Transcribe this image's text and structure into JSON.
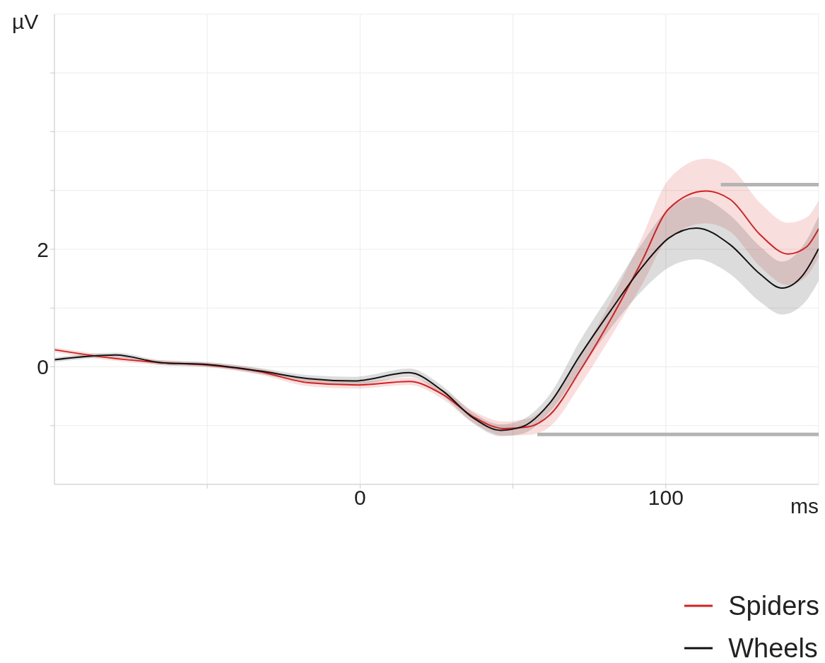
{
  "chart_data": {
    "type": "line",
    "xlabel": "ms",
    "ylabel": "µV",
    "xlim": [
      -100,
      150
    ],
    "ylim": [
      -2,
      6
    ],
    "xticks": [
      {
        "value": -50,
        "label": null
      },
      0,
      {
        "value": 50,
        "label": null
      },
      100
    ],
    "yticks": [
      {
        "value": -1,
        "label": null
      },
      0,
      {
        "value": 1,
        "label": null
      },
      2,
      {
        "value": 3,
        "label": null
      },
      {
        "value": 4,
        "label": null
      },
      {
        "value": 5,
        "label": null
      }
    ],
    "grid": true,
    "legend": "bottom right",
    "marker": "none",
    "line_style": "solid",
    "series": [
      {
        "name": "Spiders",
        "color": "#d42020",
        "x": [
          -100,
          -80,
          -65,
          -50,
          -33,
          -17,
          -1,
          16,
          27,
          37,
          47,
          55,
          62,
          72,
          82,
          92,
          101,
          113,
          121,
          131,
          140,
          146,
          150
        ],
        "values": [
          0.29,
          0.14,
          0.07,
          0.03,
          -0.08,
          -0.27,
          -0.31,
          -0.25,
          -0.47,
          -0.85,
          -1.05,
          -1.02,
          -0.82,
          -0.06,
          0.81,
          1.78,
          2.69,
          2.99,
          2.85,
          2.24,
          1.92,
          2.04,
          2.35
        ],
        "lower": [
          0.25,
          0.1,
          0.03,
          -0.01,
          -0.13,
          -0.33,
          -0.37,
          -0.31,
          -0.55,
          -0.95,
          -1.17,
          -1.16,
          -1.02,
          -0.31,
          0.51,
          1.38,
          2.19,
          2.44,
          2.3,
          1.7,
          1.39,
          1.54,
          1.87
        ],
        "upper": [
          0.33,
          0.18,
          0.11,
          0.07,
          -0.03,
          -0.21,
          -0.25,
          -0.19,
          -0.39,
          -0.75,
          -0.93,
          -0.88,
          -0.62,
          0.19,
          1.11,
          2.18,
          3.19,
          3.54,
          3.4,
          2.78,
          2.45,
          2.54,
          2.83
        ]
      },
      {
        "name": "Wheels",
        "color": "#111111",
        "x": [
          -100,
          -80,
          -65,
          -50,
          -33,
          -17,
          -2,
          16,
          27,
          37,
          46,
          53,
          62,
          72,
          82,
          92,
          101,
          110,
          121,
          131,
          138,
          145,
          150
        ],
        "values": [
          0.12,
          0.2,
          0.07,
          0.04,
          -0.07,
          -0.2,
          -0.24,
          -0.1,
          -0.41,
          -0.87,
          -1.08,
          -1.02,
          -0.62,
          0.2,
          0.96,
          1.68,
          2.19,
          2.36,
          2.08,
          1.57,
          1.34,
          1.57,
          2.01
        ],
        "lower": [
          0.08,
          0.16,
          0.03,
          0,
          -0.12,
          -0.26,
          -0.31,
          -0.17,
          -0.49,
          -0.96,
          -1.18,
          -1.14,
          -0.77,
          -0.05,
          0.66,
          1.28,
          1.69,
          1.83,
          1.58,
          1.1,
          0.89,
          1.07,
          1.46
        ],
        "upper": [
          0.16,
          0.24,
          0.11,
          0.08,
          -0.02,
          -0.14,
          -0.17,
          -0.03,
          -0.33,
          -0.78,
          -0.98,
          -0.9,
          -0.47,
          0.45,
          1.26,
          2.08,
          2.69,
          2.89,
          2.58,
          2.04,
          1.79,
          2.07,
          2.56
        ]
      },
      {
        "color": "#b4b4b4",
        "x": [
          118,
          150
        ],
        "values": [
          3.1,
          3.1
        ]
      },
      {
        "color": "#b4b4b4",
        "x": [
          58,
          150
        ],
        "values": [
          -1.15,
          -1.15
        ]
      }
    ]
  }
}
